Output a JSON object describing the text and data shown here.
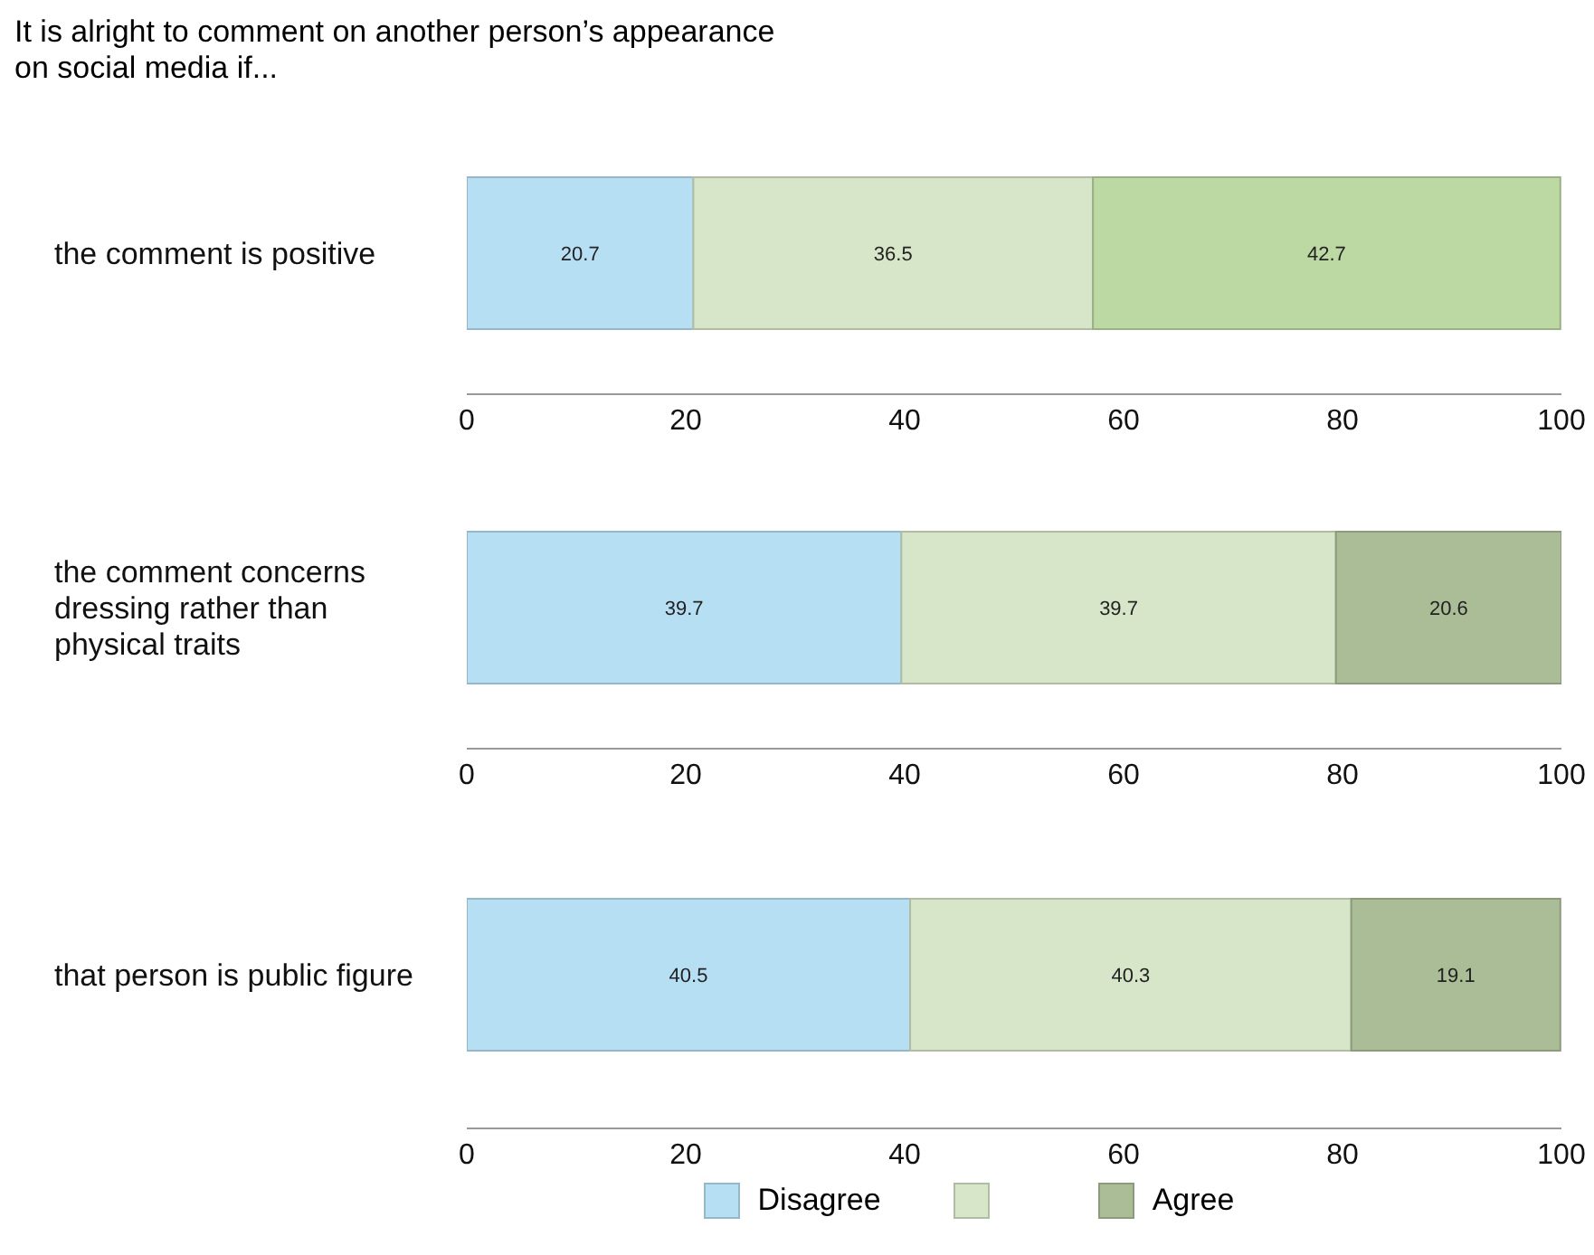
{
  "chart_data": [
    {
      "type": "bar",
      "title": "It is alright to comment on another person’s appearance on social media if...",
      "orientation": "horizontal",
      "stacked": true,
      "categories": [
        "the comment is positive"
      ],
      "series": [
        {
          "color": "#b7dff3",
          "values": [
            20.7
          ]
        },
        {
          "color": "#d7e6c8",
          "values": [
            36.5
          ]
        },
        {
          "color": "#bcd8a3",
          "values": [
            42.7
          ]
        }
      ],
      "xlim": [
        0,
        100
      ],
      "xticks": [
        0,
        20,
        40,
        60,
        80,
        100
      ],
      "data_labels": true,
      "legend": false,
      "grid": false
    },
    {
      "type": "bar",
      "orientation": "horizontal",
      "stacked": true,
      "categories": [
        "the comment concerns dressing rather than physical traits"
      ],
      "series": [
        {
          "color": "#b7dff3",
          "values": [
            39.7
          ]
        },
        {
          "color": "#d7e6c8",
          "values": [
            39.7
          ]
        },
        {
          "color": "#aabd97",
          "values": [
            20.6
          ]
        }
      ],
      "xlim": [
        0,
        100
      ],
      "xticks": [
        0,
        20,
        40,
        60,
        80,
        100
      ],
      "data_labels": true,
      "legend": false,
      "grid": false
    },
    {
      "type": "bar",
      "orientation": "horizontal",
      "stacked": true,
      "categories": [
        "that person is public figure"
      ],
      "series": [
        {
          "name": "Disagree",
          "color": "#b7dff3",
          "values": [
            40.5
          ]
        },
        {
          "color": "#d7e6c8",
          "values": [
            40.3
          ]
        },
        {
          "name": "Agree",
          "color": "#aabd97",
          "values": [
            19.1
          ]
        }
      ],
      "xlim": [
        0,
        100
      ],
      "xticks": [
        0,
        20,
        40,
        60,
        80,
        100
      ],
      "data_labels": true,
      "legend": "bottom",
      "grid": false
    }
  ]
}
